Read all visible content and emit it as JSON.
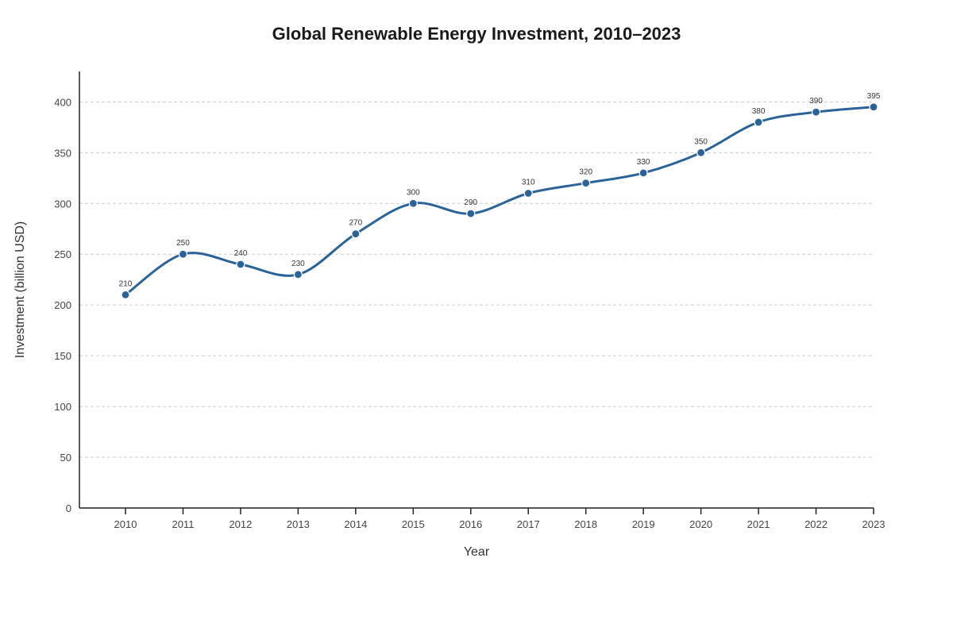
{
  "chart_data": {
    "type": "line",
    "title": "Global Renewable Energy Investment, 2010–2023",
    "xlabel": "Year",
    "ylabel": "Investment (billion USD)",
    "x": [
      "2010",
      "2011",
      "2012",
      "2013",
      "2014",
      "2015",
      "2016",
      "2017",
      "2018",
      "2019",
      "2020",
      "2021",
      "2022",
      "2023"
    ],
    "series": [
      {
        "values": [
          210,
          250,
          240,
          230,
          270,
          300,
          290,
          310,
          320,
          330,
          350,
          380,
          390,
          395
        ],
        "data_labels": [
          "210",
          "250",
          "240",
          "230",
          "270",
          "300",
          "290",
          "310",
          "320",
          "330",
          "350",
          "380",
          "390",
          "395"
        ],
        "color": "#2a6399"
      }
    ],
    "yticks": [
      "0",
      "50",
      "100",
      "150",
      "200",
      "250",
      "300",
      "350",
      "400"
    ],
    "ylim": [
      0,
      430
    ],
    "grid": true,
    "legend": "none",
    "line_style": "smooth",
    "markers": true
  }
}
